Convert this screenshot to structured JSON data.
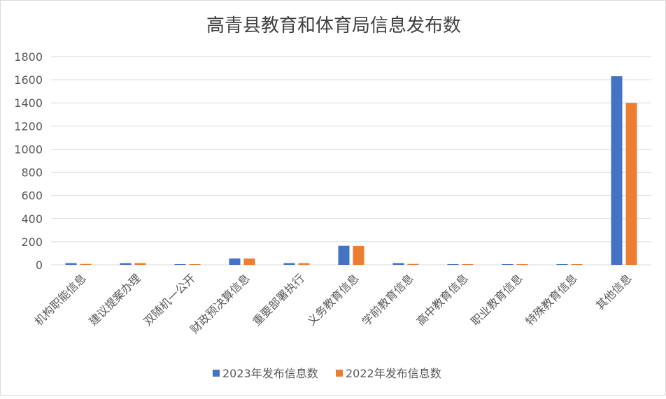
{
  "chart_data": {
    "type": "bar",
    "title": "高青县教育和体育局信息发布数",
    "categories": [
      "机构职能信息",
      "建议提案办理",
      "双随机一公开",
      "财政预决算信息",
      "重要部署执行",
      "义务教育信息",
      "学前教育信息",
      "高中教育信息",
      "职业教育信息",
      "特殊教育信息",
      "其他信息"
    ],
    "series": [
      {
        "name": "2023年发布信息数",
        "color": "#4472C4",
        "values": [
          15,
          15,
          6,
          55,
          15,
          165,
          15,
          6,
          6,
          6,
          1630
        ]
      },
      {
        "name": "2022年发布信息数",
        "color": "#ED7D31",
        "values": [
          8,
          15,
          6,
          55,
          15,
          163,
          8,
          6,
          6,
          6,
          1400
        ]
      }
    ],
    "ylim": [
      0,
      1800
    ],
    "yticks": [
      0,
      200,
      400,
      600,
      800,
      1000,
      1200,
      1400,
      1600,
      1800
    ],
    "grid": true,
    "legend": "bottom"
  }
}
